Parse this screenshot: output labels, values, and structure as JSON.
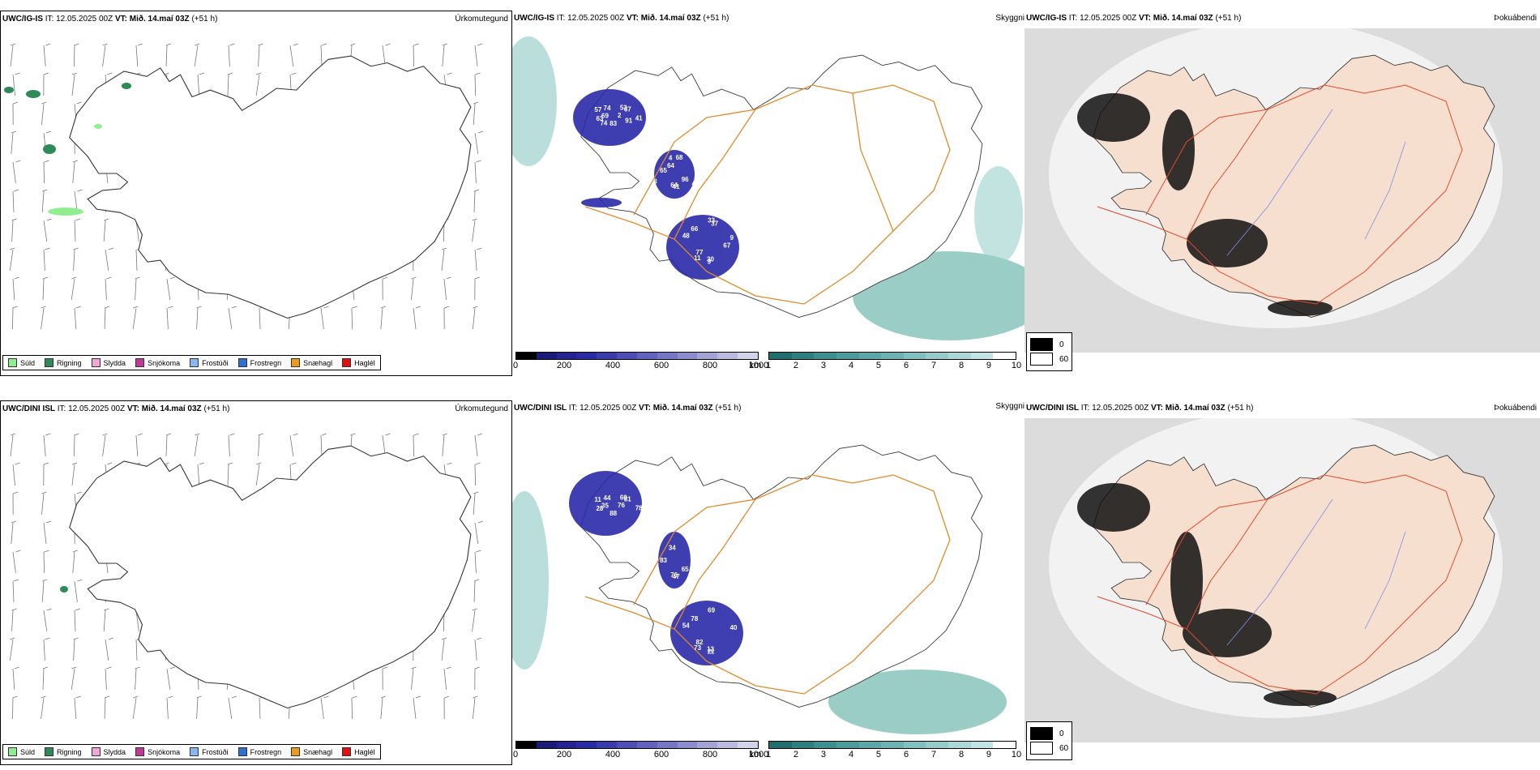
{
  "rows": [
    {
      "model": "UWC/IG-IS",
      "it_label": "IT:",
      "it_value": "12.05.2025 00Z",
      "vt_label": "VT:",
      "vt_value": "Mið. 14.maí 03Z",
      "lead": "(+51 h)",
      "precip_labels": [
        "2",
        "41",
        "48",
        "53",
        "96",
        "11",
        "57",
        "9",
        "30",
        "63",
        "4",
        "9",
        "83",
        "65",
        "33",
        "41",
        "64",
        "66",
        "67",
        "48",
        "77",
        "74",
        "56",
        "9",
        "69",
        "68",
        "67",
        "74",
        "64",
        "37",
        "91",
        "8"
      ],
      "ceiling_labels": []
    },
    {
      "model": "UWC/DINI ISL",
      "it_label": "IT:",
      "it_value": "12.05.2025 00Z",
      "vt_label": "VT:",
      "vt_value": "Mið. 14.maí 03Z",
      "lead": "(+51 h)",
      "precip_labels": [
        "76",
        "47",
        "54",
        "60",
        "65",
        "73",
        "11",
        "19",
        "12",
        "28",
        "34",
        "40",
        "88",
        "83",
        "69",
        "78",
        "76",
        "78",
        "81",
        "81",
        "82",
        "44",
        "15",
        "22",
        "35"
      ],
      "ceiling_labels": []
    }
  ],
  "fields": {
    "precip": "Úrkomutegund",
    "cloud": "Skyggni",
    "fog": "Þokuábendi"
  },
  "precip_legend": [
    {
      "label": "Súld",
      "color": "#90ee90"
    },
    {
      "label": "Rigning",
      "color": "#2e8b57"
    },
    {
      "label": "Slydda",
      "color": "#f4a6d7"
    },
    {
      "label": "Snjókoma",
      "color": "#c0399a"
    },
    {
      "label": "Frostúði",
      "color": "#87b8f0"
    },
    {
      "label": "Frostregn",
      "color": "#2e6fd0"
    },
    {
      "label": "Snæhagl",
      "color": "#f09a1a"
    },
    {
      "label": "Haglél",
      "color": "#e01010"
    }
  ],
  "ceiling_bar": {
    "unit": "m",
    "ticks": [
      "0",
      "200",
      "400",
      "600",
      "800",
      "1000"
    ],
    "colors": [
      "#000000",
      "#1a1a7a",
      "#232395",
      "#2a2aa8",
      "#3b3bb0",
      "#4e4eb8",
      "#6262c0",
      "#7777c8",
      "#8c8cd0",
      "#a3a3d8",
      "#babae0",
      "#d2d2e8"
    ]
  },
  "vis_bar": {
    "unit": "km",
    "ticks": [
      "1",
      "2",
      "3",
      "4",
      "5",
      "6",
      "7",
      "8",
      "9",
      "10"
    ],
    "colors": [
      "#1f6f6f",
      "#2d8080",
      "#3b8f8f",
      "#4a9c9c",
      "#5aa8a8",
      "#6cb4b4",
      "#7fc0c0",
      "#94cccc",
      "#aad8d8",
      "#c2e4e4",
      "#ffffff"
    ]
  },
  "fog_legend": [
    {
      "label": "0",
      "color": "#000000"
    },
    {
      "label": "60",
      "color": "#ffffff"
    }
  ]
}
